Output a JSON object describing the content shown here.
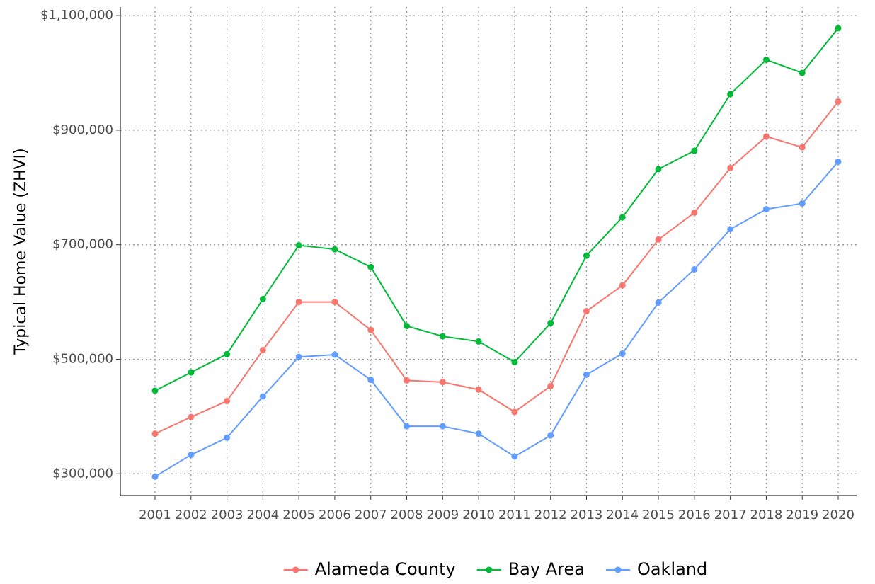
{
  "chart_data": {
    "type": "line",
    "y_label": "Typical Home Value (ZHVI)",
    "categories": [
      "2001",
      "2002",
      "2003",
      "2004",
      "2005",
      "2006",
      "2007",
      "2008",
      "2009",
      "2010",
      "2011",
      "2012",
      "2013",
      "2014",
      "2015",
      "2016",
      "2017",
      "2018",
      "2019",
      "2020"
    ],
    "series": [
      {
        "name": "Alameda County",
        "color": "#f8766d",
        "values": [
          370000,
          399000,
          427000,
          516000,
          600000,
          600000,
          551000,
          463000,
          460000,
          447000,
          408000,
          453000,
          584000,
          629000,
          709000,
          756000,
          834000,
          889000,
          870000,
          950000
        ]
      },
      {
        "name": "Bay Area",
        "color": "#00ba38",
        "values": [
          445000,
          477000,
          509000,
          605000,
          699000,
          692000,
          661000,
          558000,
          540000,
          531000,
          495000,
          563000,
          681000,
          748000,
          832000,
          864000,
          963000,
          1023000,
          1000000,
          1078000
        ]
      },
      {
        "name": "Oakland",
        "color": "#619cff",
        "values": [
          295000,
          333000,
          363000,
          435000,
          504000,
          508000,
          464000,
          383000,
          383000,
          370000,
          330000,
          367000,
          473000,
          510000,
          599000,
          657000,
          727000,
          762000,
          772000,
          845000
        ]
      }
    ],
    "ylim": [
      262000,
      1115000
    ],
    "yticks": [
      {
        "value": 300000,
        "label": "$300,000"
      },
      {
        "value": 500000,
        "label": "$500,000"
      },
      {
        "value": 700000,
        "label": "$700,000"
      },
      {
        "value": 900000,
        "label": "$900,000"
      },
      {
        "value": 1100000,
        "label": "$1,100,000"
      }
    ],
    "grid": true,
    "legend": "bottom"
  }
}
